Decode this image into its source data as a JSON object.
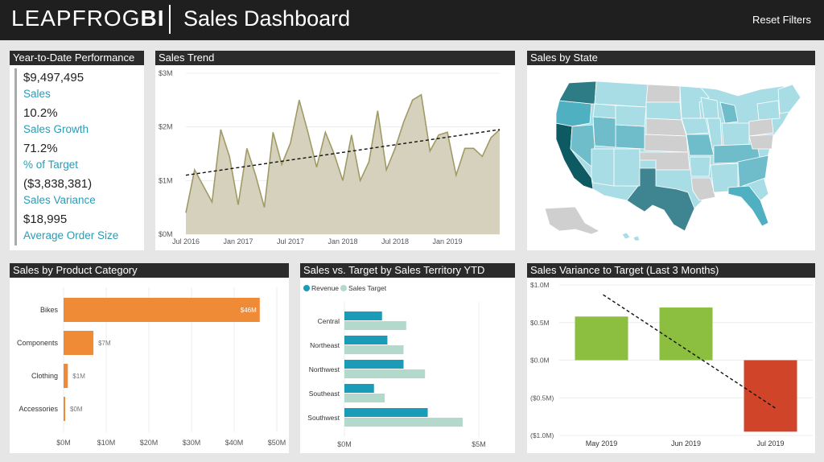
{
  "header": {
    "logo_light": "LEAPFROG",
    "logo_bold": "BI",
    "title": "Sales Dashboard",
    "reset_label": "Reset Filters"
  },
  "ytd": {
    "title": "Year-to-Date Performance",
    "items": [
      {
        "value": "$9,497,495",
        "label": "Sales"
      },
      {
        "value": "10.2%",
        "label": "Sales Growth"
      },
      {
        "value": "71.2%",
        "label": "% of Target"
      },
      {
        "value": "($3,838,381)",
        "label": "Sales Variance"
      },
      {
        "value": "$18,995",
        "label": "Average Order Size"
      }
    ]
  },
  "trend": {
    "title": "Sales Trend"
  },
  "state": {
    "title": "Sales by State"
  },
  "product": {
    "title": "Sales by Product Category"
  },
  "territory": {
    "title": "Sales vs. Target by Sales Territory YTD"
  },
  "variance": {
    "title": "Sales Variance to Target (Last 3 Months)"
  },
  "colors": {
    "accent": "#2a9bb5",
    "trend_fill": "#d6d1bd",
    "trend_line": "#a09a66",
    "bar_orange": "#ef8a36",
    "revenue": "#1a9bb7",
    "target": "#b3d8cc",
    "positive": "#8cbf3f",
    "negative": "#d0452a"
  },
  "chart_data": [
    {
      "type": "area",
      "title": "Sales Trend",
      "x_ticks": [
        "Jul 2016",
        "Jan 2017",
        "Jul 2017",
        "Jan 2018",
        "Jul 2018",
        "Jan 2019"
      ],
      "y_ticks": [
        "$0M",
        "$1M",
        "$2M",
        "$3M"
      ],
      "ylim": [
        0,
        3
      ],
      "values": [
        0.4,
        1.2,
        0.9,
        0.6,
        1.95,
        1.45,
        0.55,
        1.6,
        1.1,
        0.5,
        1.9,
        1.3,
        1.7,
        2.5,
        1.9,
        1.25,
        1.9,
        1.5,
        1.0,
        1.85,
        1.0,
        1.35,
        2.3,
        1.2,
        1.6,
        2.1,
        2.5,
        2.6,
        1.55,
        1.85,
        1.9,
        1.1,
        1.6,
        1.6,
        1.45,
        1.8,
        1.95
      ],
      "trendline": [
        1.1,
        1.95
      ]
    },
    {
      "type": "bar",
      "title": "Sales by Product Category",
      "categories": [
        "Bikes",
        "Components",
        "Clothing",
        "Accessories"
      ],
      "values": [
        46,
        7,
        1,
        0
      ],
      "data_labels": [
        "$46M",
        "$7M",
        "$1M",
        "$0M"
      ],
      "x_ticks": [
        "$0M",
        "$10M",
        "$20M",
        "$30M",
        "$40M",
        "$50M"
      ],
      "xlim": [
        0,
        50
      ]
    },
    {
      "type": "bar",
      "title": "Sales vs. Target by Sales Territory YTD",
      "legend": [
        "Revenue",
        "Sales Target"
      ],
      "categories": [
        "Central",
        "Northeast",
        "Northwest",
        "Southeast",
        "Southwest"
      ],
      "series": [
        {
          "name": "Revenue",
          "values": [
            1.4,
            1.6,
            2.2,
            1.1,
            3.1
          ]
        },
        {
          "name": "Sales Target",
          "values": [
            2.3,
            2.2,
            3.0,
            1.5,
            4.4
          ]
        }
      ],
      "x_ticks": [
        "$0M",
        "$5M"
      ],
      "xlim": [
        0,
        5
      ]
    },
    {
      "type": "bar",
      "title": "Sales Variance to Target (Last 3 Months)",
      "categories": [
        "May 2019",
        "Jun 2019",
        "Jul 2019"
      ],
      "values": [
        0.58,
        0.7,
        -0.95
      ],
      "y_ticks": [
        "$1.0M",
        "$0.5M",
        "$0.0M",
        "($0.5M)",
        "($1.0M)"
      ],
      "ylim": [
        -1.0,
        1.0
      ],
      "trendline": [
        0.87,
        -0.65
      ]
    }
  ]
}
